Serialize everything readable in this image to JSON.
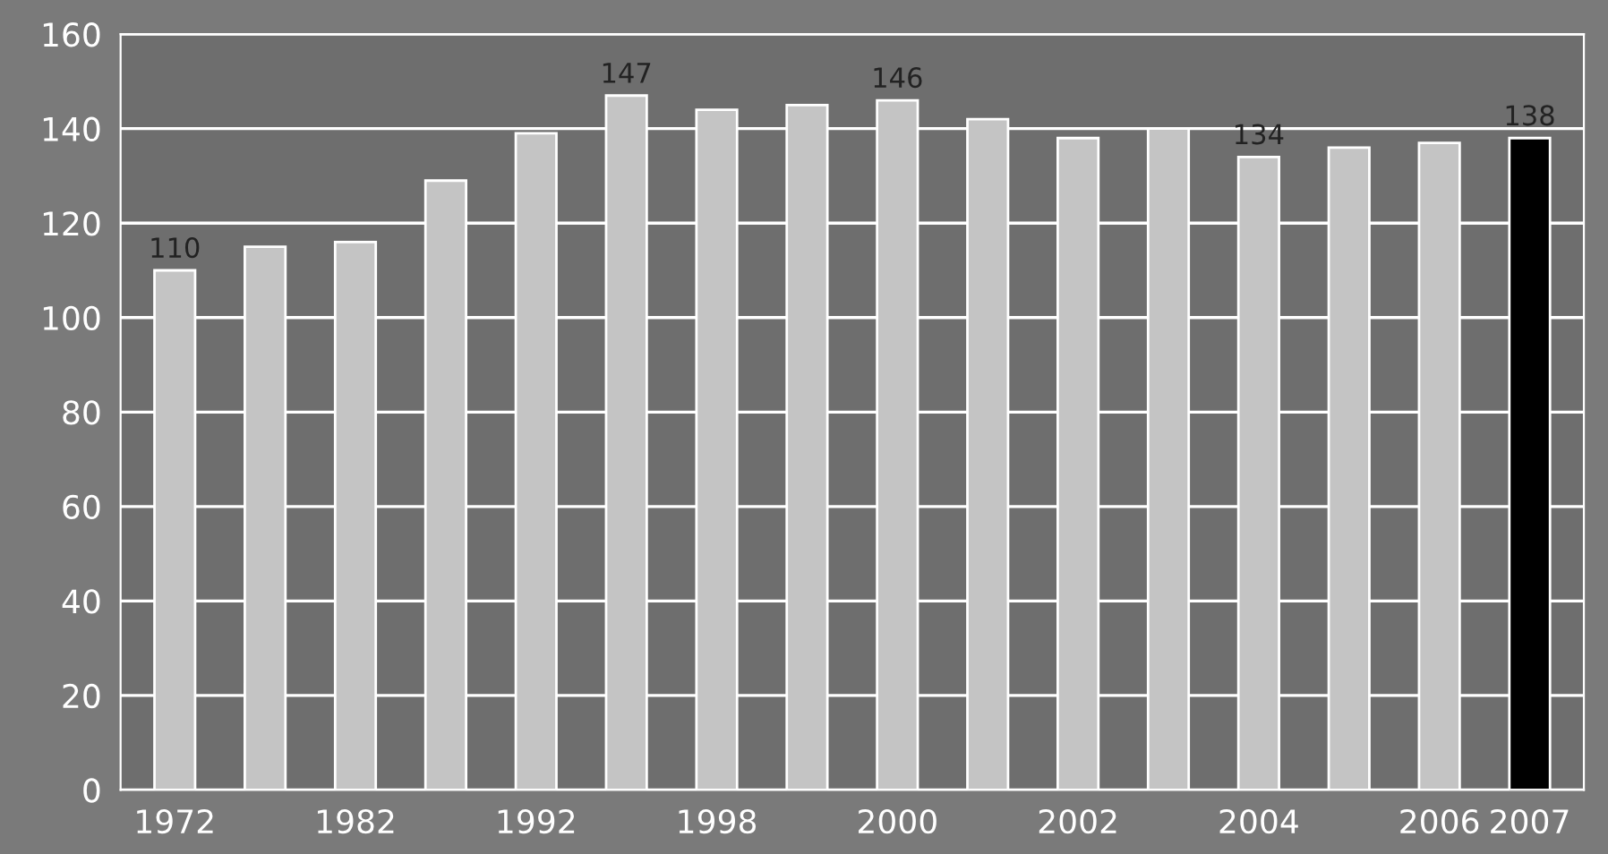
{
  "chart_data": {
    "type": "bar",
    "categories": [
      "1972",
      null,
      "1982",
      null,
      "1992",
      null,
      "1998",
      null,
      "2000",
      null,
      "2002",
      null,
      "2004",
      null,
      "2006",
      "2007"
    ],
    "values": [
      110,
      115,
      116,
      129,
      139,
      147,
      144,
      145,
      146,
      142,
      138,
      140,
      134,
      136,
      137,
      138
    ],
    "value_labels": [
      "110",
      null,
      null,
      null,
      null,
      "147",
      null,
      null,
      "146",
      null,
      null,
      null,
      "134",
      null,
      null,
      "138"
    ],
    "colors": [
      "#c4c4c4",
      "#c4c4c4",
      "#c4c4c4",
      "#c4c4c4",
      "#c4c4c4",
      "#c4c4c4",
      "#c4c4c4",
      "#c4c4c4",
      "#c4c4c4",
      "#c4c4c4",
      "#c4c4c4",
      "#c4c4c4",
      "#c4c4c4",
      "#c4c4c4",
      "#c4c4c4",
      "#000000"
    ],
    "ylim": [
      0,
      160
    ],
    "yticks": [
      0,
      20,
      40,
      60,
      80,
      100,
      120,
      140,
      160
    ],
    "grid": "y"
  }
}
